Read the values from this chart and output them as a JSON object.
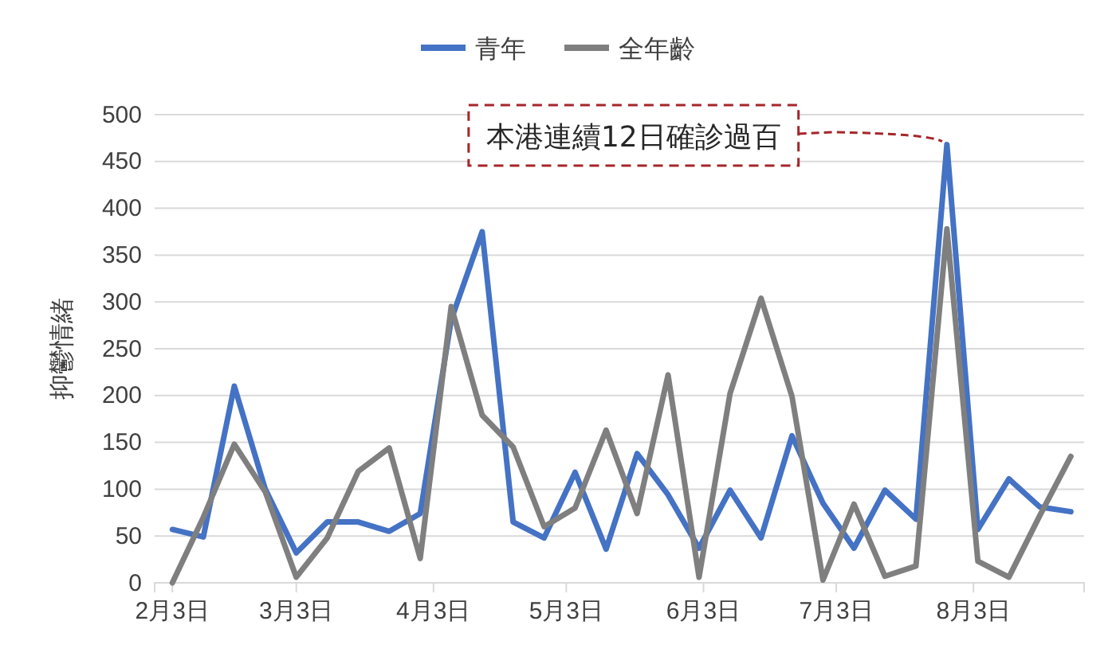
{
  "chart_data": {
    "type": "line",
    "ylabel": "抑鬱情緒",
    "x": [
      "--02-03",
      "--02-10",
      "--02-17",
      "--02-24",
      "--03-03",
      "--03-10",
      "--03-17",
      "--03-24",
      "--03-31",
      "--04-07",
      "--04-14",
      "--04-21",
      "--04-28",
      "--05-05",
      "--05-12",
      "--05-19",
      "--05-26",
      "--06-02",
      "--06-09",
      "--06-16",
      "--06-23",
      "--06-30",
      "--07-07",
      "--07-14",
      "--07-21",
      "--07-28",
      "--08-04",
      "--08-11",
      "--08-18",
      "--08-25"
    ],
    "series": [
      {
        "name": "青年",
        "color": "#4472c4",
        "values": [
          57,
          49,
          210,
          100,
          32,
          65,
          65,
          55,
          74,
          281,
          375,
          65,
          48,
          118,
          36,
          138,
          94,
          37,
          99,
          48,
          157,
          85,
          37,
          99,
          68,
          468,
          57,
          111,
          81,
          76
        ]
      },
      {
        "name": "全年齡",
        "color": "#7f7f7f",
        "values": [
          0,
          70,
          148,
          97,
          6,
          48,
          119,
          144,
          26,
          295,
          179,
          145,
          60,
          80,
          163,
          74,
          222,
          6,
          202,
          304,
          199,
          3,
          84,
          7,
          18,
          378,
          23,
          6,
          72,
          135
        ]
      }
    ],
    "xlim": [
      "--01-30",
      "--08-28"
    ],
    "xticks": [
      {
        "value": "--02-03",
        "label": "2月3日"
      },
      {
        "value": "--03-03",
        "label": "3月3日"
      },
      {
        "value": "--04-03",
        "label": "4月3日"
      },
      {
        "value": "--05-03",
        "label": "5月3日"
      },
      {
        "value": "--06-03",
        "label": "6月3日"
      },
      {
        "value": "--07-03",
        "label": "7月3日"
      },
      {
        "value": "--08-03",
        "label": "8月3日"
      }
    ],
    "ylim": [
      0,
      500
    ],
    "yticks": [
      0,
      50,
      100,
      150,
      200,
      250,
      300,
      350,
      400,
      450,
      500
    ],
    "grid": "y",
    "legend": "top",
    "marker": "none",
    "line_style": "solid",
    "annotations": [
      {
        "text": "本港連續12日確診過百",
        "x": "--07-28",
        "y": 468
      }
    ]
  }
}
